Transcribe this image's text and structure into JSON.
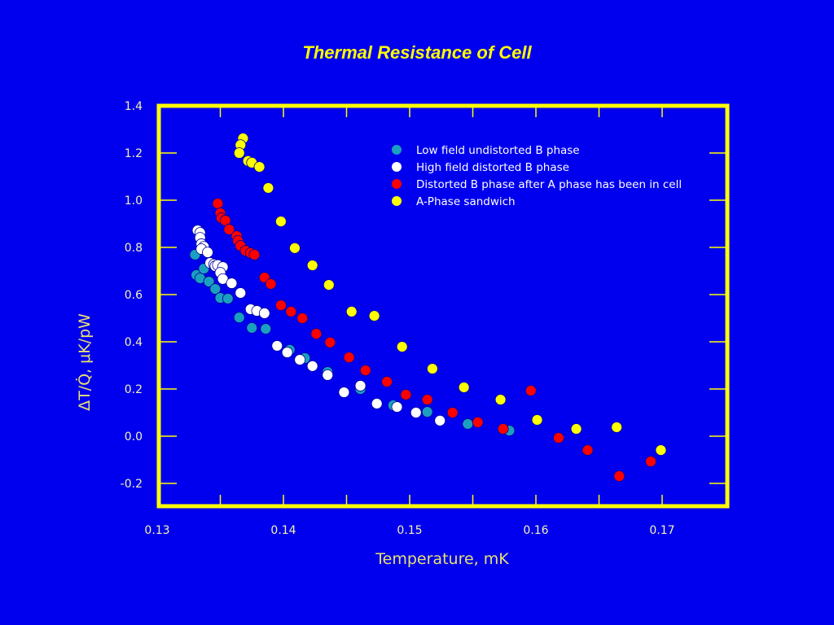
{
  "chart_data": {
    "type": "scatter",
    "title": "Thermal Resistance of Cell",
    "xlabel": "Temperature, mK",
    "ylabel": "ΔT/Q̇,  μK/pW",
    "xlim": [
      0.13,
      0.175
    ],
    "ylim": [
      -0.3,
      1.4
    ],
    "xticks": [
      "0.13",
      "0.14",
      "0.15",
      "0.16",
      "0.17"
    ],
    "yticks": [
      "1.4",
      "1.2",
      "1.0",
      "0.8",
      "0.6",
      "0.4",
      "0.2",
      "0.0",
      "-0.2"
    ],
    "grid": false,
    "legend_position": "top-right",
    "series": [
      {
        "name": "Low field undistorted B phase",
        "color": "#1a9fc0",
        "x": [
          0.133,
          0.1331,
          0.1334,
          0.1337,
          0.1341,
          0.1346,
          0.135,
          0.1356,
          0.1365,
          0.1375,
          0.1386,
          0.1405,
          0.1417,
          0.1435,
          0.1461,
          0.1487,
          0.1514,
          0.1546,
          0.1579
        ],
        "y": [
          0.769,
          0.683,
          0.669,
          0.71,
          0.655,
          0.624,
          0.586,
          0.583,
          0.503,
          0.459,
          0.455,
          0.366,
          0.331,
          0.272,
          0.2,
          0.131,
          0.103,
          0.052,
          0.024
        ]
      },
      {
        "name": "High field distorted B phase",
        "color": "#ffffff",
        "x": [
          0.1332,
          0.1334,
          0.1334,
          0.1335,
          0.1337,
          0.1335,
          0.134,
          0.1342,
          0.1345,
          0.1346,
          0.1348,
          0.1352,
          0.135,
          0.1352,
          0.1359,
          0.1366,
          0.1374,
          0.1379,
          0.1385,
          0.1395,
          0.1403,
          0.1413,
          0.1423,
          0.1435,
          0.1448,
          0.1461,
          0.1474,
          0.149,
          0.1505,
          0.1524
        ],
        "y": [
          0.872,
          0.862,
          0.841,
          0.814,
          0.803,
          0.793,
          0.779,
          0.734,
          0.728,
          0.721,
          0.725,
          0.717,
          0.693,
          0.666,
          0.648,
          0.607,
          0.538,
          0.531,
          0.521,
          0.383,
          0.355,
          0.324,
          0.297,
          0.259,
          0.186,
          0.214,
          0.138,
          0.124,
          0.1,
          0.066
        ]
      },
      {
        "name": "Distorted B phase after A phase has been in cell",
        "color": "#ff0000",
        "x": [
          0.1348,
          0.135,
          0.1351,
          0.1354,
          0.1357,
          0.1363,
          0.1364,
          0.1366,
          0.137,
          0.1374,
          0.1377,
          0.1385,
          0.139,
          0.1398,
          0.1406,
          0.1415,
          0.1426,
          0.1437,
          0.1452,
          0.1465,
          0.1482,
          0.1497,
          0.1514,
          0.1534,
          0.1554,
          0.1574,
          0.1596,
          0.1618,
          0.1641,
          0.1666,
          0.1691
        ],
        "y": [
          0.986,
          0.945,
          0.924,
          0.914,
          0.876,
          0.848,
          0.828,
          0.807,
          0.786,
          0.776,
          0.769,
          0.672,
          0.645,
          0.555,
          0.528,
          0.5,
          0.434,
          0.397,
          0.334,
          0.279,
          0.231,
          0.176,
          0.155,
          0.1,
          0.059,
          0.031,
          0.193,
          -0.007,
          -0.059,
          -0.169,
          -0.107
        ]
      },
      {
        "name": "A-Phase sandwich",
        "color": "#ffff00",
        "x": [
          0.1368,
          0.1366,
          0.1365,
          0.1372,
          0.1375,
          0.1381,
          0.1388,
          0.1398,
          0.1409,
          0.1423,
          0.1436,
          0.1454,
          0.1472,
          0.1494,
          0.1518,
          0.1543,
          0.1572,
          0.1601,
          0.1632,
          0.1664,
          0.1699
        ],
        "y": [
          1.262,
          1.234,
          1.2,
          1.166,
          1.159,
          1.141,
          1.052,
          0.91,
          0.797,
          0.724,
          0.641,
          0.528,
          0.51,
          0.379,
          0.286,
          0.207,
          0.155,
          0.069,
          0.031,
          0.038,
          -0.059
        ]
      }
    ]
  }
}
